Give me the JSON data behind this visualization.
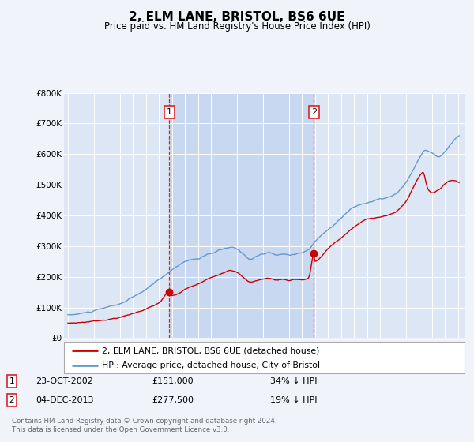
{
  "title": "2, ELM LANE, BRISTOL, BS6 6UE",
  "subtitle": "Price paid vs. HM Land Registry's House Price Index (HPI)",
  "background_color": "#f0f4fa",
  "plot_bg_color": "#dce6f5",
  "shaded_bg_color": "#c8d8f0",
  "red_line_label": "2, ELM LANE, BRISTOL, BS6 6UE (detached house)",
  "blue_line_label": "HPI: Average price, detached house, City of Bristol",
  "footer": "Contains HM Land Registry data © Crown copyright and database right 2024.\nThis data is licensed under the Open Government Licence v3.0.",
  "sale1_date": "23-OCT-2002",
  "sale1_price": "£151,000",
  "sale1_hpi": "34% ↓ HPI",
  "sale2_date": "04-DEC-2013",
  "sale2_price": "£277,500",
  "sale2_hpi": "19% ↓ HPI",
  "ylim": [
    0,
    800000
  ],
  "yticks": [
    0,
    100000,
    200000,
    300000,
    400000,
    500000,
    600000,
    700000,
    800000
  ],
  "ytick_labels": [
    "£0",
    "£100K",
    "£200K",
    "£300K",
    "£400K",
    "£500K",
    "£600K",
    "£700K",
    "£800K"
  ],
  "red_color": "#cc0000",
  "blue_color": "#6699cc",
  "vline_color": "#dd2222",
  "marker1_x_year": 2002.81,
  "marker1_y": 151000,
  "marker2_x_year": 2013.92,
  "marker2_y": 277500,
  "xlim_start": 1994.7,
  "xlim_end": 2025.5
}
